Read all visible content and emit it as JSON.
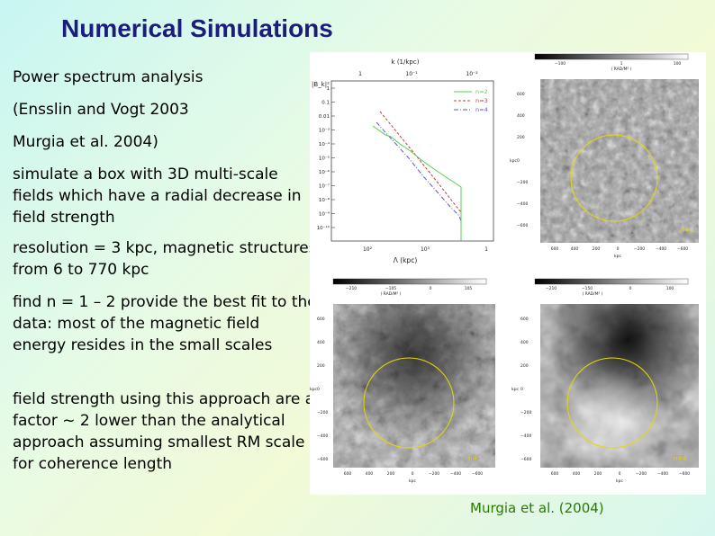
{
  "slide": {
    "title": "Numerical Simulations",
    "paragraphs": [
      "Power spectrum analysis",
      "(Ensslin and Vogt 2003",
      "Murgia et al. 2004)",
      "simulate a box with 3D multi-scale fields which have a radial decrease in field strength",
      "resolution = 3 kpc, magnetic structures from 6 to 770 kpc",
      "find n = 1 – 2 provide the best fit to the data: most of the magnetic field energy resides in the small scales",
      "field strength using this approach are a factor ~ 2 lower than the analytical approach assuming smallest RM scale for coherence length"
    ],
    "caption": "Murgia et al. (2004)"
  },
  "spectrum_plot": {
    "top_axis_label": "k (1/kpc)",
    "top_ticks": [
      "1",
      "10⁻¹",
      "10⁻²"
    ],
    "ylabel": "|B_k|²",
    "yticks": [
      "1",
      "0.1",
      "0.01",
      "10⁻³",
      "10⁻⁴",
      "10⁻⁵",
      "10⁻⁶",
      "10⁻⁷",
      "10⁻⁸",
      "10⁻⁹",
      "10⁻¹⁰"
    ],
    "xticks": [
      "10²",
      "10³",
      "1"
    ],
    "xlabel": "Λ (kpc)",
    "legend": [
      {
        "label": "n=2",
        "color": "#4cd14c"
      },
      {
        "label": "n=3",
        "color": "#c83a3a"
      },
      {
        "label": "n=4",
        "color": "#5a5ac8"
      }
    ]
  },
  "rm_maps": [
    {
      "panel": "top-right",
      "colorbar_label": "( RAD/M² )",
      "colorbar_ticks": [
        "−100",
        "1",
        "100"
      ],
      "yticks": [
        "600",
        "400",
        "200",
        "0",
        "−200",
        "−400",
        "−600"
      ],
      "xticks": [
        "600",
        "400",
        "200",
        "0",
        "−200",
        "−400",
        "−600"
      ],
      "xlabel": "kpc",
      "ylabel": "kpc",
      "n_label": "n=2"
    },
    {
      "panel": "bottom-left",
      "colorbar_label": "( RAD/M² )",
      "colorbar_ticks": [
        "−210",
        "−105",
        "0",
        "105"
      ],
      "yticks": [
        "600",
        "400",
        "200",
        "0",
        "−200",
        "−400",
        "−600"
      ],
      "xticks": [
        "600",
        "400",
        "200",
        "0",
        "−200",
        "−400",
        "−600"
      ],
      "xlabel": "kpc",
      "ylabel": "kpc",
      "n_label": "n=3"
    },
    {
      "panel": "bottom-right",
      "colorbar_label": "( RAD/M² )",
      "colorbar_ticks": [
        "−210",
        "−150",
        "0",
        "100"
      ],
      "yticks": [
        "600",
        "400",
        "200",
        "0",
        "−200",
        "−400",
        "−600"
      ],
      "xticks": [
        "600",
        "400",
        "200",
        "0",
        "−200",
        "−400",
        "−600"
      ],
      "xlabel": "kpc",
      "ylabel": "kpc",
      "n_label": "n=4"
    }
  ]
}
